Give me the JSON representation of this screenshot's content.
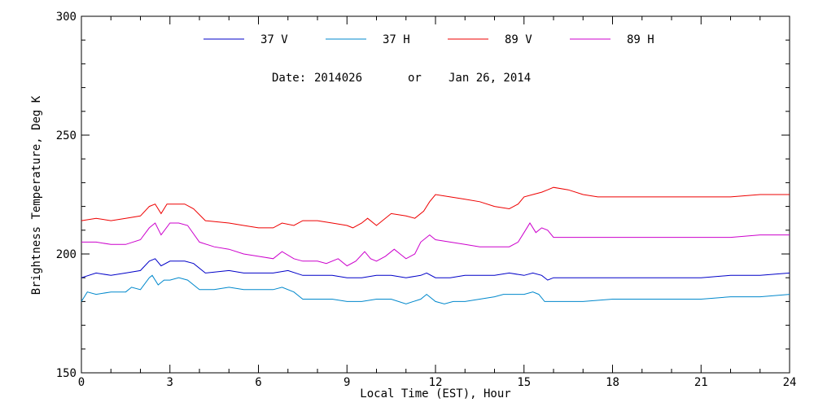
{
  "chart_data": {
    "type": "line",
    "title": "",
    "xlabel": "Local Time (EST), Hour",
    "ylabel": "Brightness Temperature, Deg K",
    "xlim": [
      0,
      24
    ],
    "ylim": [
      150,
      300
    ],
    "xticks": [
      "0",
      "3",
      "6",
      "9",
      "12",
      "15",
      "18",
      "21",
      "24"
    ],
    "yticks": [
      "150",
      "200",
      "250",
      "300"
    ],
    "annotation": {
      "date_prefix": "Date:",
      "date_code": "2014026",
      "or": "or",
      "date_text": "Jan 26, 2014"
    },
    "legend_position": "top",
    "series": [
      {
        "name": "37 V",
        "color": "#0000c8",
        "points": [
          [
            0,
            190
          ],
          [
            0.5,
            192
          ],
          [
            1,
            191
          ],
          [
            1.5,
            192
          ],
          [
            2,
            193
          ],
          [
            2.3,
            197
          ],
          [
            2.5,
            198
          ],
          [
            2.7,
            195
          ],
          [
            3,
            197
          ],
          [
            3.5,
            197
          ],
          [
            3.8,
            196
          ],
          [
            4.2,
            192
          ],
          [
            5,
            193
          ],
          [
            5.5,
            192
          ],
          [
            6,
            192
          ],
          [
            6.5,
            192
          ],
          [
            7,
            193
          ],
          [
            7.5,
            191
          ],
          [
            8,
            191
          ],
          [
            8.5,
            191
          ],
          [
            9,
            190
          ],
          [
            9.5,
            190
          ],
          [
            10,
            191
          ],
          [
            10.5,
            191
          ],
          [
            11,
            190
          ],
          [
            11.5,
            191
          ],
          [
            11.7,
            192
          ],
          [
            12,
            190
          ],
          [
            12.5,
            190
          ],
          [
            13,
            191
          ],
          [
            13.5,
            191
          ],
          [
            14,
            191
          ],
          [
            14.5,
            192
          ],
          [
            15,
            191
          ],
          [
            15.3,
            192
          ],
          [
            15.6,
            191
          ],
          [
            15.8,
            189
          ],
          [
            16,
            190
          ],
          [
            17,
            190
          ],
          [
            18,
            190
          ],
          [
            19,
            190
          ],
          [
            20,
            190
          ],
          [
            21,
            190
          ],
          [
            22,
            191
          ],
          [
            23,
            191
          ],
          [
            24,
            192
          ]
        ]
      },
      {
        "name": "37 H",
        "color": "#0088cc",
        "points": [
          [
            0,
            180
          ],
          [
            0.2,
            184
          ],
          [
            0.5,
            183
          ],
          [
            1,
            184
          ],
          [
            1.5,
            184
          ],
          [
            1.7,
            186
          ],
          [
            2,
            185
          ],
          [
            2.3,
            190
          ],
          [
            2.4,
            191
          ],
          [
            2.6,
            187
          ],
          [
            2.8,
            189
          ],
          [
            3,
            189
          ],
          [
            3.3,
            190
          ],
          [
            3.6,
            189
          ],
          [
            4,
            185
          ],
          [
            4.5,
            185
          ],
          [
            5,
            186
          ],
          [
            5.5,
            185
          ],
          [
            6,
            185
          ],
          [
            6.5,
            185
          ],
          [
            6.8,
            186
          ],
          [
            7.2,
            184
          ],
          [
            7.5,
            181
          ],
          [
            8,
            181
          ],
          [
            8.5,
            181
          ],
          [
            9,
            180
          ],
          [
            9.5,
            180
          ],
          [
            10,
            181
          ],
          [
            10.5,
            181
          ],
          [
            11,
            179
          ],
          [
            11.5,
            181
          ],
          [
            11.7,
            183
          ],
          [
            12,
            180
          ],
          [
            12.3,
            179
          ],
          [
            12.6,
            180
          ],
          [
            13,
            180
          ],
          [
            13.5,
            181
          ],
          [
            14,
            182
          ],
          [
            14.3,
            183
          ],
          [
            14.6,
            183
          ],
          [
            15,
            183
          ],
          [
            15.3,
            184
          ],
          [
            15.5,
            183
          ],
          [
            15.7,
            180
          ],
          [
            16,
            180
          ],
          [
            16.5,
            180
          ],
          [
            17,
            180
          ],
          [
            18,
            181
          ],
          [
            19,
            181
          ],
          [
            20,
            181
          ],
          [
            21,
            181
          ],
          [
            22,
            182
          ],
          [
            23,
            182
          ],
          [
            24,
            183
          ]
        ]
      },
      {
        "name": "89 V",
        "color": "#ee0000",
        "points": [
          [
            0,
            214
          ],
          [
            0.5,
            215
          ],
          [
            1,
            214
          ],
          [
            1.5,
            215
          ],
          [
            2,
            216
          ],
          [
            2.3,
            220
          ],
          [
            2.5,
            221
          ],
          [
            2.7,
            217
          ],
          [
            2.9,
            221
          ],
          [
            3.2,
            221
          ],
          [
            3.5,
            221
          ],
          [
            3.8,
            219
          ],
          [
            4.2,
            214
          ],
          [
            5,
            213
          ],
          [
            5.5,
            212
          ],
          [
            6,
            211
          ],
          [
            6.5,
            211
          ],
          [
            6.8,
            213
          ],
          [
            7.2,
            212
          ],
          [
            7.5,
            214
          ],
          [
            8,
            214
          ],
          [
            8.5,
            213
          ],
          [
            9,
            212
          ],
          [
            9.2,
            211
          ],
          [
            9.5,
            213
          ],
          [
            9.7,
            215
          ],
          [
            10,
            212
          ],
          [
            10.5,
            217
          ],
          [
            11,
            216
          ],
          [
            11.3,
            215
          ],
          [
            11.6,
            218
          ],
          [
            11.8,
            222
          ],
          [
            12,
            225
          ],
          [
            12.5,
            224
          ],
          [
            13,
            223
          ],
          [
            13.5,
            222
          ],
          [
            14,
            220
          ],
          [
            14.5,
            219
          ],
          [
            14.8,
            221
          ],
          [
            15,
            224
          ],
          [
            15.3,
            225
          ],
          [
            15.6,
            226
          ],
          [
            15.8,
            227
          ],
          [
            16,
            228
          ],
          [
            16.5,
            227
          ],
          [
            17,
            225
          ],
          [
            17.5,
            224
          ],
          [
            18,
            224
          ],
          [
            19,
            224
          ],
          [
            20,
            224
          ],
          [
            21,
            224
          ],
          [
            22,
            224
          ],
          [
            23,
            225
          ],
          [
            24,
            225
          ]
        ]
      },
      {
        "name": "89 H",
        "color": "#cc00cc",
        "points": [
          [
            0,
            205
          ],
          [
            0.5,
            205
          ],
          [
            1,
            204
          ],
          [
            1.5,
            204
          ],
          [
            2,
            206
          ],
          [
            2.3,
            211
          ],
          [
            2.5,
            213
          ],
          [
            2.7,
            208
          ],
          [
            3,
            213
          ],
          [
            3.3,
            213
          ],
          [
            3.6,
            212
          ],
          [
            4,
            205
          ],
          [
            4.5,
            203
          ],
          [
            5,
            202
          ],
          [
            5.5,
            200
          ],
          [
            6,
            199
          ],
          [
            6.5,
            198
          ],
          [
            6.8,
            201
          ],
          [
            7.2,
            198
          ],
          [
            7.5,
            197
          ],
          [
            8,
            197
          ],
          [
            8.3,
            196
          ],
          [
            8.7,
            198
          ],
          [
            9,
            195
          ],
          [
            9.3,
            197
          ],
          [
            9.6,
            201
          ],
          [
            9.8,
            198
          ],
          [
            10,
            197
          ],
          [
            10.3,
            199
          ],
          [
            10.6,
            202
          ],
          [
            10.8,
            200
          ],
          [
            11,
            198
          ],
          [
            11.3,
            200
          ],
          [
            11.5,
            205
          ],
          [
            11.8,
            208
          ],
          [
            12,
            206
          ],
          [
            12.5,
            205
          ],
          [
            13,
            204
          ],
          [
            13.5,
            203
          ],
          [
            14,
            203
          ],
          [
            14.5,
            203
          ],
          [
            14.8,
            205
          ],
          [
            15,
            209
          ],
          [
            15.2,
            213
          ],
          [
            15.4,
            209
          ],
          [
            15.6,
            211
          ],
          [
            15.8,
            210
          ],
          [
            16,
            207
          ],
          [
            16.5,
            207
          ],
          [
            17,
            207
          ],
          [
            18,
            207
          ],
          [
            19,
            207
          ],
          [
            20,
            207
          ],
          [
            21,
            207
          ],
          [
            22,
            207
          ],
          [
            23,
            208
          ],
          [
            24,
            208
          ]
        ]
      }
    ]
  }
}
